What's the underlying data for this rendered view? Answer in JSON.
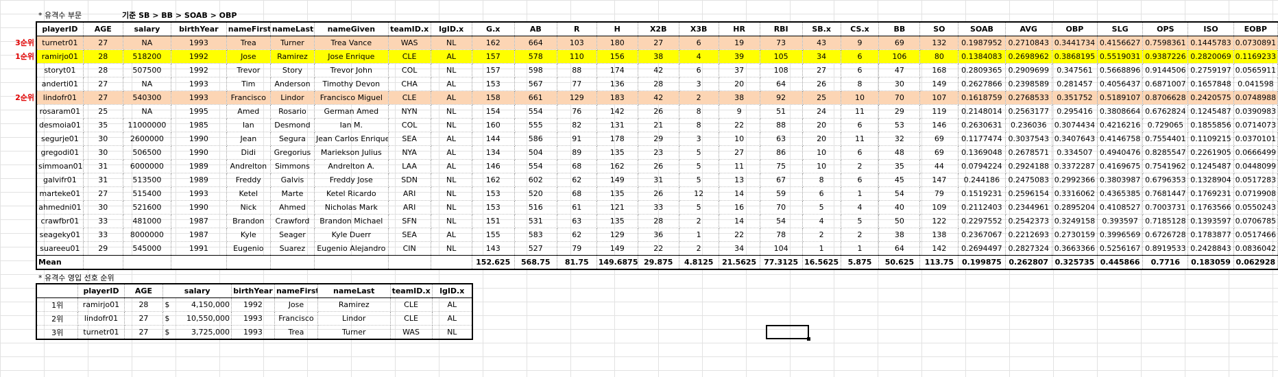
{
  "notes": {
    "section1": "* 유격수 부문",
    "criteria": "기준 SB > BB > SOAB > OBP",
    "section2": "* 유격수 영입 선호 순위"
  },
  "main_table": {
    "columns": [
      "playerID",
      "AGE",
      "salary",
      "birthYear",
      "nameFirst",
      "nameLast",
      "nameGiven",
      "teamID.x",
      "lgID.x",
      "G.x",
      "AB",
      "R",
      "H",
      "X2B",
      "X3B",
      "HR",
      "RBI",
      "SB.x",
      "CS.x",
      "BB",
      "SO",
      "SOAB",
      "AVG",
      "OBP",
      "SLG",
      "OPS",
      "ISO",
      "EOBP"
    ],
    "rows": [
      {
        "rank": "3순위",
        "hl": "peach",
        "cells": [
          "turnetr01",
          "27",
          "NA",
          "1993",
          "Trea",
          "Turner",
          "Trea Vance",
          "WAS",
          "NL",
          "162",
          "664",
          "103",
          "180",
          "27",
          "6",
          "19",
          "73",
          "43",
          "9",
          "69",
          "132",
          "0.1987952",
          "0.2710843",
          "0.3441734",
          "0.4156627",
          "0.7598361",
          "0.1445783",
          "0.0730891"
        ]
      },
      {
        "rank": "1순위",
        "hl": "yellow",
        "cells": [
          "ramirjo01",
          "28",
          "518200",
          "1992",
          "Jose",
          "Ramirez",
          "Jose Enrique",
          "CLE",
          "AL",
          "157",
          "578",
          "110",
          "156",
          "38",
          "4",
          "39",
          "105",
          "34",
          "6",
          "106",
          "80",
          "0.1384083",
          "0.2698962",
          "0.3868195",
          "0.5519031",
          "0.9387226",
          "0.2820069",
          "0.1169233"
        ]
      },
      {
        "rank": "",
        "hl": "",
        "cells": [
          "storyt01",
          "28",
          "507500",
          "1992",
          "Trevor",
          "Story",
          "Trevor John",
          "COL",
          "NL",
          "157",
          "598",
          "88",
          "174",
          "42",
          "6",
          "37",
          "108",
          "27",
          "6",
          "47",
          "168",
          "0.2809365",
          "0.2909699",
          "0.347561",
          "0.5668896",
          "0.9144506",
          "0.2759197",
          "0.0565911"
        ]
      },
      {
        "rank": "",
        "hl": "",
        "cells": [
          "anderti01",
          "27",
          "NA",
          "1993",
          "Tim",
          "Anderson",
          "Timothy Devon",
          "CHA",
          "AL",
          "153",
          "567",
          "77",
          "136",
          "28",
          "3",
          "20",
          "64",
          "26",
          "8",
          "30",
          "149",
          "0.2627866",
          "0.2398589",
          "0.281457",
          "0.4056437",
          "0.6871007",
          "0.1657848",
          "0.041598"
        ]
      },
      {
        "rank": "2순위",
        "hl": "peach",
        "cells": [
          "lindofr01",
          "27",
          "540300",
          "1993",
          "Francisco",
          "Lindor",
          "Francisco Miguel",
          "CLE",
          "AL",
          "158",
          "661",
          "129",
          "183",
          "42",
          "2",
          "38",
          "92",
          "25",
          "10",
          "70",
          "107",
          "0.1618759",
          "0.2768533",
          "0.351752",
          "0.5189107",
          "0.8706628",
          "0.2420575",
          "0.0748988"
        ]
      },
      {
        "rank": "",
        "hl": "",
        "cells": [
          "rosaram01",
          "25",
          "NA",
          "1995",
          "Amed",
          "Rosario",
          "German Amed",
          "NYN",
          "NL",
          "154",
          "554",
          "76",
          "142",
          "26",
          "8",
          "9",
          "51",
          "24",
          "11",
          "29",
          "119",
          "0.2148014",
          "0.2563177",
          "0.295416",
          "0.3808664",
          "0.6762824",
          "0.1245487",
          "0.0390983"
        ]
      },
      {
        "rank": "",
        "hl": "",
        "cells": [
          "desmoia01",
          "35",
          "11000000",
          "1985",
          "Ian",
          "Desmond",
          "Ian M.",
          "COL",
          "NL",
          "160",
          "555",
          "82",
          "131",
          "21",
          "8",
          "22",
          "88",
          "20",
          "6",
          "53",
          "146",
          "0.2630631",
          "0.236036",
          "0.3074434",
          "0.4216216",
          "0.729065",
          "0.1855856",
          "0.0714073"
        ]
      },
      {
        "rank": "",
        "hl": "",
        "cells": [
          "segurje01",
          "30",
          "2600000",
          "1990",
          "Jean",
          "Segura",
          "Jean Carlos Enrique",
          "SEA",
          "AL",
          "144",
          "586",
          "91",
          "178",
          "29",
          "3",
          "10",
          "63",
          "20",
          "11",
          "32",
          "69",
          "0.1177474",
          "0.3037543",
          "0.3407643",
          "0.4146758",
          "0.7554401",
          "0.1109215",
          "0.0370101"
        ]
      },
      {
        "rank": "",
        "hl": "",
        "cells": [
          "gregodi01",
          "30",
          "506500",
          "1990",
          "Didi",
          "Gregorius",
          "Mariekson Julius",
          "NYA",
          "AL",
          "134",
          "504",
          "89",
          "135",
          "23",
          "5",
          "27",
          "86",
          "10",
          "6",
          "48",
          "69",
          "0.1369048",
          "0.2678571",
          "0.334507",
          "0.4940476",
          "0.8285547",
          "0.2261905",
          "0.0666499"
        ]
      },
      {
        "rank": "",
        "hl": "",
        "cells": [
          "simmoan01",
          "31",
          "6000000",
          "1989",
          "Andrelton",
          "Simmons",
          "Andrelton A.",
          "LAA",
          "AL",
          "146",
          "554",
          "68",
          "162",
          "26",
          "5",
          "11",
          "75",
          "10",
          "2",
          "35",
          "44",
          "0.0794224",
          "0.2924188",
          "0.3372287",
          "0.4169675",
          "0.7541962",
          "0.1245487",
          "0.0448099"
        ]
      },
      {
        "rank": "",
        "hl": "",
        "cells": [
          "galvifr01",
          "31",
          "513500",
          "1989",
          "Freddy",
          "Galvis",
          "Freddy Jose",
          "SDN",
          "NL",
          "162",
          "602",
          "62",
          "149",
          "31",
          "5",
          "13",
          "67",
          "8",
          "6",
          "45",
          "147",
          "0.244186",
          "0.2475083",
          "0.2992366",
          "0.3803987",
          "0.6796353",
          "0.1328904",
          "0.0517283"
        ]
      },
      {
        "rank": "",
        "hl": "",
        "cells": [
          "marteke01",
          "27",
          "515400",
          "1993",
          "Ketel",
          "Marte",
          "Ketel Ricardo",
          "ARI",
          "NL",
          "153",
          "520",
          "68",
          "135",
          "26",
          "12",
          "14",
          "59",
          "6",
          "1",
          "54",
          "79",
          "0.1519231",
          "0.2596154",
          "0.3316062",
          "0.4365385",
          "0.7681447",
          "0.1769231",
          "0.0719908"
        ]
      },
      {
        "rank": "",
        "hl": "",
        "cells": [
          "ahmedni01",
          "30",
          "521600",
          "1990",
          "Nick",
          "Ahmed",
          "Nicholas Mark",
          "ARI",
          "NL",
          "153",
          "516",
          "61",
          "121",
          "33",
          "5",
          "16",
          "70",
          "5",
          "4",
          "40",
          "109",
          "0.2112403",
          "0.2344961",
          "0.2895204",
          "0.4108527",
          "0.7003731",
          "0.1763566",
          "0.0550243"
        ]
      },
      {
        "rank": "",
        "hl": "",
        "cells": [
          "crawfbr01",
          "33",
          "481000",
          "1987",
          "Brandon",
          "Crawford",
          "Brandon Michael",
          "SFN",
          "NL",
          "151",
          "531",
          "63",
          "135",
          "28",
          "2",
          "14",
          "54",
          "4",
          "5",
          "50",
          "122",
          "0.2297552",
          "0.2542373",
          "0.3249158",
          "0.393597",
          "0.7185128",
          "0.1393597",
          "0.0706785"
        ]
      },
      {
        "rank": "",
        "hl": "",
        "cells": [
          "seageky01",
          "33",
          "8000000",
          "1987",
          "Kyle",
          "Seager",
          "Kyle Duerr",
          "SEA",
          "AL",
          "155",
          "583",
          "62",
          "129",
          "36",
          "1",
          "22",
          "78",
          "2",
          "2",
          "38",
          "138",
          "0.2367067",
          "0.2212693",
          "0.2730159",
          "0.3996569",
          "0.6726728",
          "0.1783877",
          "0.0517466"
        ]
      },
      {
        "rank": "",
        "hl": "",
        "cells": [
          "suareeu01",
          "29",
          "545000",
          "1991",
          "Eugenio",
          "Suarez",
          "Eugenio Alejandro",
          "CIN",
          "NL",
          "143",
          "527",
          "79",
          "149",
          "22",
          "2",
          "34",
          "104",
          "1",
          "1",
          "64",
          "142",
          "0.2694497",
          "0.2827324",
          "0.3663366",
          "0.5256167",
          "0.8919533",
          "0.2428843",
          "0.0836042"
        ]
      }
    ],
    "mean_label": "Mean",
    "mean_values": [
      "",
      "",
      "",
      "",
      "",
      "",
      "",
      "",
      "152.625",
      "568.75",
      "81.75",
      "149.6875",
      "29.875",
      "4.8125",
      "21.5625",
      "77.3125",
      "16.5625",
      "5.875",
      "50.625",
      "113.75",
      "0.199875",
      "0.262807",
      "0.325735",
      "0.445866",
      "0.7716",
      "0.183059",
      "0.062928"
    ]
  },
  "pref_table": {
    "columns": [
      "",
      "playerID",
      "AGE",
      "salary",
      "birthYear",
      "nameFirst",
      "nameLast",
      "teamID.x",
      "lgID.x"
    ],
    "rows": [
      {
        "rank": "1위",
        "playerID": "ramirjo01",
        "AGE": "28",
        "currency": "$",
        "salary": "4,150,000",
        "birthYear": "1992",
        "nameFirst": "Jose",
        "nameLast": "Ramirez",
        "teamID": "CLE",
        "lgID": "AL"
      },
      {
        "rank": "2위",
        "playerID": "lindofr01",
        "AGE": "27",
        "currency": "$",
        "salary": "10,550,000",
        "birthYear": "1993",
        "nameFirst": "Francisco",
        "nameLast": "Lindor",
        "teamID": "CLE",
        "lgID": "AL"
      },
      {
        "rank": "3위",
        "playerID": "turnetr01",
        "AGE": "27",
        "currency": "$",
        "salary": "3,725,000",
        "birthYear": "1993",
        "nameFirst": "Trea",
        "nameLast": "Turner",
        "teamID": "WAS",
        "lgID": "NL"
      }
    ]
  }
}
